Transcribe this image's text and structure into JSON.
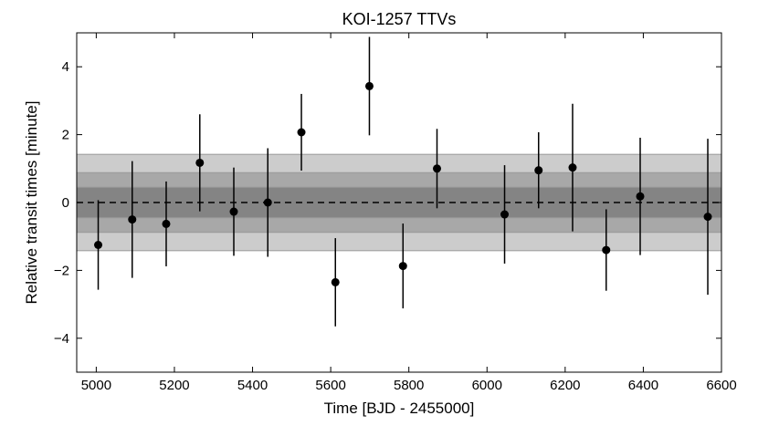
{
  "chart_data": {
    "type": "scatter",
    "title": "KOI-1257 TTVs",
    "xlabel": "Time [BJD - 2455000]",
    "ylabel": "Relative transit times [minute]",
    "xlim": [
      4950,
      6600
    ],
    "ylim": [
      -5,
      5
    ],
    "xticks": [
      5000,
      5200,
      5400,
      5600,
      5800,
      6000,
      6200,
      6400,
      6600
    ],
    "yticks": [
      -4,
      -2,
      0,
      2,
      4
    ],
    "ytick_labels": [
      "−4",
      "−2",
      "0",
      "2",
      "4"
    ],
    "grid": false,
    "reference_line": {
      "y": 0,
      "style": "dashed"
    },
    "sigma_bands": [
      {
        "half_width": 1.42,
        "color": "#cccccc"
      },
      {
        "half_width": 0.88,
        "color": "#a8a8a8"
      },
      {
        "half_width": 0.45,
        "color": "#848484"
      }
    ],
    "band_edge_color": "#9a9a9a",
    "marker_color": "#000000",
    "points": [
      {
        "x": 5005,
        "y": -1.25,
        "err": 1.32
      },
      {
        "x": 5092,
        "y": -0.5,
        "err": 1.72
      },
      {
        "x": 5179,
        "y": -0.63,
        "err": 1.25
      },
      {
        "x": 5265,
        "y": 1.17,
        "err": 1.43
      },
      {
        "x": 5352,
        "y": -0.27,
        "err": 1.3
      },
      {
        "x": 5439,
        "y": 0.0,
        "err": 1.6
      },
      {
        "x": 5525,
        "y": 2.07,
        "err": 1.13
      },
      {
        "x": 5612,
        "y": -2.35,
        "err": 1.3
      },
      {
        "x": 5699,
        "y": 3.43,
        "err": 1.45
      },
      {
        "x": 5785,
        "y": -1.87,
        "err": 1.25
      },
      {
        "x": 5872,
        "y": 1.0,
        "err": 1.17
      },
      {
        "x": 6045,
        "y": -0.35,
        "err": 1.45
      },
      {
        "x": 6132,
        "y": 0.95,
        "err": 1.12
      },
      {
        "x": 6219,
        "y": 1.03,
        "err": 1.88
      },
      {
        "x": 6305,
        "y": -1.4,
        "err": 1.2
      },
      {
        "x": 6392,
        "y": 0.18,
        "err": 1.73
      },
      {
        "x": 6565,
        "y": -0.42,
        "err": 2.3
      }
    ]
  }
}
